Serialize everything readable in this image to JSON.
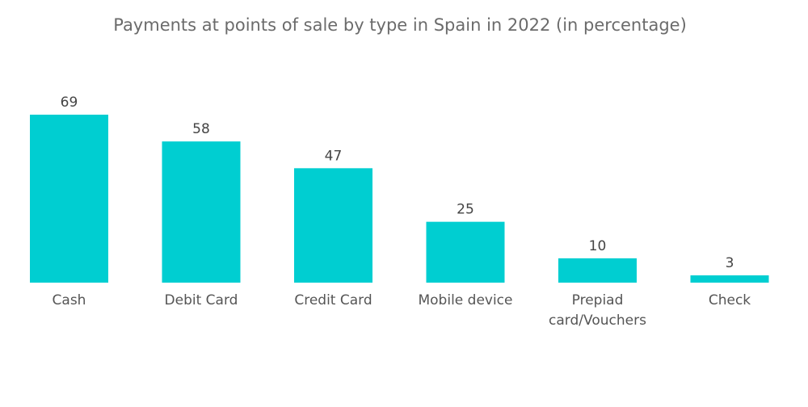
{
  "chart_data": {
    "type": "bar",
    "title": "Payments at points of sale by type in Spain in 2022 (in percentage)",
    "xlabel": "",
    "ylabel": "",
    "categories": [
      "Cash",
      "Debit Card",
      "Credit Card",
      "Mobile device",
      "Prepiad card/Vouchers",
      "Check"
    ],
    "category_lines": [
      [
        "Cash"
      ],
      [
        "Debit Card"
      ],
      [
        "Credit Card"
      ],
      [
        "Mobile device"
      ],
      [
        "Prepiad",
        "card/Vouchers"
      ],
      [
        "Check"
      ]
    ],
    "values": [
      69,
      58,
      47,
      25,
      10,
      3
    ],
    "ylim": [
      0,
      69
    ],
    "grid": false,
    "legend": "none",
    "bar_color": "#00CED1"
  }
}
